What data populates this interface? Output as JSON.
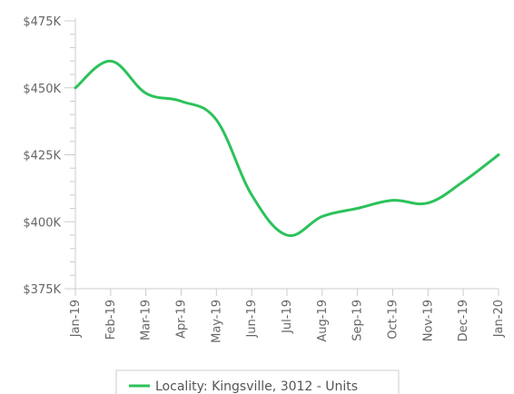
{
  "chart_data": {
    "type": "line",
    "x": [
      "Jan-19",
      "Feb-19",
      "Mar-19",
      "Apr-19",
      "May-19",
      "Jun-19",
      "Jul-19",
      "Aug-19",
      "Sep-19",
      "Oct-19",
      "Nov-19",
      "Dec-19",
      "Jan-20"
    ],
    "series": [
      {
        "name": "Locality: Kingsville, 3012 - Units",
        "values": [
          450000,
          460000,
          448000,
          445000,
          438000,
          410000,
          395000,
          402000,
          405000,
          408000,
          407000,
          415000,
          425000
        ],
        "color": "#2cc25a"
      }
    ],
    "y_ticks": [
      375000,
      400000,
      425000,
      450000,
      475000
    ],
    "y_tick_labels": [
      "$375K",
      "$400K",
      "$425K",
      "$450K",
      "$475K"
    ],
    "ylim": [
      375000,
      475000
    ],
    "grid": false,
    "legend_position": "bottom-center",
    "axis_color": "#cccccc",
    "text_color": "#666666"
  }
}
